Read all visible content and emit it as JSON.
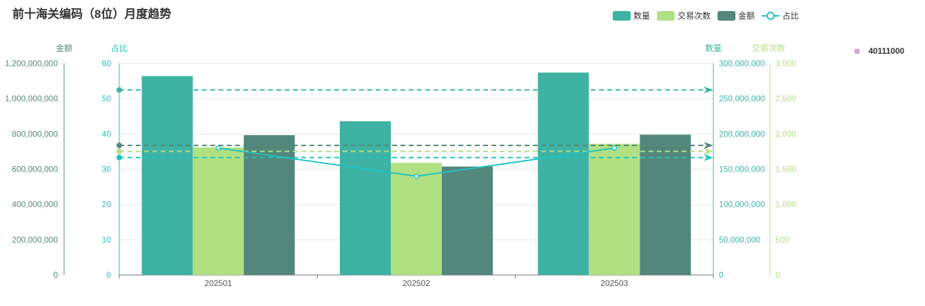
{
  "title": "前十海关编码（8位）月度趋势",
  "legend": {
    "items": [
      {
        "label": "数量",
        "type": "bar",
        "color": "#3eb3a3"
      },
      {
        "label": "交易次数",
        "type": "bar",
        "color": "#b1e083"
      },
      {
        "label": "金额",
        "type": "bar",
        "color": "#54877b"
      },
      {
        "label": "占比",
        "type": "line",
        "color": "#1fc3c3"
      }
    ]
  },
  "side_legend": {
    "label": "40111000",
    "color": "#d8a0d8"
  },
  "chart_data": {
    "type": "bar",
    "categories": [
      "202501",
      "202502",
      "202503"
    ],
    "series": [
      {
        "name": "数量",
        "type": "bar",
        "axis": "quantity",
        "color": "#3eb3a3",
        "values": [
          282000000,
          218000000,
          287000000
        ]
      },
      {
        "name": "交易次数",
        "type": "bar",
        "axis": "count",
        "color": "#b1e083",
        "values": [
          1810,
          1590,
          1860
        ]
      },
      {
        "name": "金额",
        "type": "bar",
        "axis": "amount",
        "color": "#54877b",
        "values": [
          793000000,
          615000000,
          796000000
        ]
      },
      {
        "name": "占比",
        "type": "line",
        "axis": "ratio",
        "color": "#1fc3c3",
        "values": [
          36,
          28,
          36
        ]
      }
    ],
    "axes": {
      "amount": {
        "label": "金额",
        "min": 0,
        "max": 1200000000,
        "color": "#54877b",
        "ticks": [
          "0",
          "200,000,000",
          "400,000,000",
          "600,000,000",
          "800,000,000",
          "1,000,000,000",
          "1,200,000,000"
        ]
      },
      "ratio": {
        "label": "占比",
        "min": 0,
        "max": 60,
        "color": "#1fc3c3",
        "ticks": [
          "0",
          "10",
          "20",
          "30",
          "40",
          "50",
          "60"
        ]
      },
      "quantity": {
        "label": "数量",
        "min": 0,
        "max": 300000000,
        "color": "#3eb3a3",
        "ticks": [
          "0",
          "50,000,000",
          "100,000,000",
          "150,000,000",
          "200,000,000",
          "250,000,000",
          "300,000,000"
        ]
      },
      "count": {
        "label": "交易次数",
        "min": 0,
        "max": 3000,
        "color": "#b1e083",
        "ticks": [
          "0",
          "500",
          "1,000",
          "1,500",
          "2,000",
          "2,500",
          "3,000"
        ]
      }
    },
    "average_lines": [
      {
        "series": "数量",
        "axis": "quantity",
        "value": 262333333,
        "color": "#3eb3a3"
      },
      {
        "series": "交易次数",
        "axis": "count",
        "value": 1753,
        "color": "#b1e083"
      },
      {
        "series": "金额",
        "axis": "amount",
        "value": 735000000,
        "color": "#54877b"
      },
      {
        "series": "占比",
        "axis": "ratio",
        "value": 33.3,
        "color": "#1fc3c3"
      }
    ],
    "grid": true
  }
}
